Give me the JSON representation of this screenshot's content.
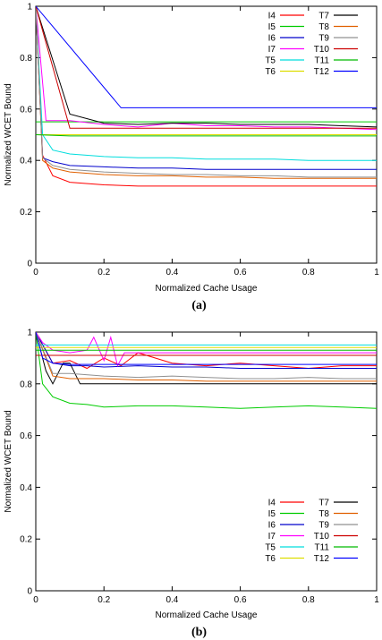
{
  "chart_data": [
    {
      "type": "line",
      "panel_label": "(a)",
      "xlabel": "Normalized Cache Usage",
      "ylabel": "Normalized WCET Bound",
      "xlim": [
        0,
        1
      ],
      "ylim": [
        0,
        1
      ],
      "xticks": [
        "0",
        "0.2",
        "0.4",
        "0.6",
        "0.8",
        "1"
      ],
      "yticks": [
        "0",
        "0.2",
        "0.4",
        "0.6",
        "0.8",
        "1"
      ],
      "grid": false,
      "legend_position": "top-right",
      "legend_columns": 2,
      "series": [
        {
          "name": "I4",
          "color": "#ff0000",
          "x": [
            0,
            0.02,
            0.05,
            0.1,
            0.2,
            0.3,
            0.4,
            0.5,
            0.6,
            0.7,
            0.8,
            0.9,
            1
          ],
          "y": [
            1,
            0.42,
            0.34,
            0.315,
            0.305,
            0.3,
            0.3,
            0.3,
            0.3,
            0.3,
            0.3,
            0.3,
            0.3
          ]
        },
        {
          "name": "I5",
          "color": "#00cc00",
          "x": [
            0,
            0.1,
            0.2,
            0.3,
            0.4,
            0.5,
            0.6,
            0.7,
            0.8,
            0.9,
            1
          ],
          "y": [
            0.55,
            0.55,
            0.55,
            0.55,
            0.55,
            0.55,
            0.55,
            0.55,
            0.55,
            0.55,
            0.55
          ]
        },
        {
          "name": "I6",
          "color": "#0000cc",
          "x": [
            0,
            0.02,
            0.05,
            0.1,
            0.2,
            0.3,
            0.4,
            0.5,
            0.6,
            0.7,
            0.8,
            0.9,
            1
          ],
          "y": [
            1,
            0.41,
            0.395,
            0.38,
            0.375,
            0.37,
            0.37,
            0.365,
            0.365,
            0.365,
            0.365,
            0.365,
            0.365
          ]
        },
        {
          "name": "I7",
          "color": "#ff00ff",
          "x": [
            0,
            0.03,
            0.1,
            0.2,
            0.3,
            0.4,
            0.5,
            0.6,
            0.7,
            0.8,
            0.9,
            1
          ],
          "y": [
            1,
            0.555,
            0.555,
            0.54,
            0.53,
            0.545,
            0.535,
            0.535,
            0.53,
            0.53,
            0.525,
            0.52
          ]
        },
        {
          "name": "T5",
          "color": "#00dddd",
          "x": [
            0,
            0.02,
            0.05,
            0.1,
            0.2,
            0.3,
            0.4,
            0.5,
            0.6,
            0.7,
            0.8,
            0.9,
            1
          ],
          "y": [
            1,
            0.5,
            0.44,
            0.425,
            0.415,
            0.41,
            0.41,
            0.405,
            0.405,
            0.405,
            0.4,
            0.4,
            0.4
          ]
        },
        {
          "name": "T6",
          "color": "#dddd00",
          "x": [
            0,
            0.1,
            0.2,
            0.3,
            0.4,
            0.5,
            0.6,
            0.7,
            0.8,
            0.9,
            1
          ],
          "y": [
            0.5,
            0.5,
            0.5,
            0.5,
            0.5,
            0.5,
            0.5,
            0.5,
            0.5,
            0.5,
            0.5
          ]
        },
        {
          "name": "T7",
          "color": "#000000",
          "x": [
            0,
            0.1,
            0.2,
            0.3,
            0.4,
            0.5,
            0.6,
            0.7,
            0.8,
            0.9,
            1
          ],
          "y": [
            1,
            0.58,
            0.545,
            0.54,
            0.545,
            0.545,
            0.54,
            0.54,
            0.54,
            0.535,
            0.53
          ]
        },
        {
          "name": "T8",
          "color": "#e06000",
          "x": [
            0,
            0.02,
            0.05,
            0.1,
            0.2,
            0.3,
            0.4,
            0.5,
            0.6,
            0.7,
            0.8,
            0.9,
            1
          ],
          "y": [
            1,
            0.4,
            0.37,
            0.355,
            0.345,
            0.34,
            0.34,
            0.335,
            0.335,
            0.33,
            0.33,
            0.33,
            0.33
          ]
        },
        {
          "name": "T9",
          "color": "#909090",
          "x": [
            0,
            0.02,
            0.05,
            0.1,
            0.2,
            0.3,
            0.4,
            0.5,
            0.6,
            0.7,
            0.8,
            0.9,
            1
          ],
          "y": [
            1,
            0.41,
            0.38,
            0.365,
            0.355,
            0.35,
            0.345,
            0.345,
            0.34,
            0.34,
            0.335,
            0.335,
            0.335
          ]
        },
        {
          "name": "T10",
          "color": "#cc0000",
          "x": [
            0,
            0.1,
            0.2,
            0.3,
            0.4,
            0.5,
            0.6,
            0.7,
            0.8,
            0.9,
            1
          ],
          "y": [
            1,
            0.525,
            0.525,
            0.525,
            0.525,
            0.525,
            0.525,
            0.525,
            0.525,
            0.525,
            0.525
          ]
        },
        {
          "name": "T11",
          "color": "#00bb00",
          "x": [
            0,
            0.1,
            0.2,
            0.3,
            0.4,
            0.5,
            0.6,
            0.7,
            0.8,
            0.9,
            1
          ],
          "y": [
            0.5,
            0.495,
            0.495,
            0.495,
            0.495,
            0.495,
            0.495,
            0.495,
            0.495,
            0.495,
            0.495
          ]
        },
        {
          "name": "T12",
          "color": "#0000ff",
          "x": [
            0,
            0.25,
            0.4,
            0.6,
            0.8,
            1
          ],
          "y": [
            1,
            0.605,
            0.605,
            0.605,
            0.605,
            0.605
          ]
        }
      ]
    },
    {
      "type": "line",
      "panel_label": "(b)",
      "xlabel": "Normalized Cache Usage",
      "ylabel": "Normalized WCET Bound",
      "xlim": [
        0,
        1
      ],
      "ylim": [
        0,
        1
      ],
      "xticks": [
        "0",
        "0.2",
        "0.4",
        "0.6",
        "0.8",
        "1"
      ],
      "yticks": [
        "0",
        "0.2",
        "0.4",
        "0.6",
        "0.8",
        "1"
      ],
      "grid": false,
      "legend_position": "bottom-right",
      "legend_columns": 2,
      "series": [
        {
          "name": "I4",
          "color": "#ff0000",
          "x": [
            0,
            0.02,
            0.05,
            0.1,
            0.15,
            0.2,
            0.25,
            0.3,
            0.4,
            0.5,
            0.6,
            0.7,
            0.8,
            0.9,
            1
          ],
          "y": [
            1,
            0.95,
            0.88,
            0.89,
            0.86,
            0.9,
            0.87,
            0.92,
            0.88,
            0.87,
            0.88,
            0.87,
            0.86,
            0.87,
            0.87
          ]
        },
        {
          "name": "I5",
          "color": "#00cc00",
          "x": [
            0,
            0.02,
            0.05,
            0.1,
            0.15,
            0.2,
            0.3,
            0.4,
            0.5,
            0.6,
            0.7,
            0.8,
            0.9,
            1
          ],
          "y": [
            1,
            0.8,
            0.75,
            0.725,
            0.72,
            0.71,
            0.715,
            0.715,
            0.71,
            0.705,
            0.71,
            0.715,
            0.71,
            0.705
          ]
        },
        {
          "name": "I6",
          "color": "#0000cc",
          "x": [
            0,
            0.05,
            0.1,
            0.15,
            0.2,
            0.3,
            0.4,
            0.5,
            0.6,
            0.7,
            0.8,
            0.9,
            1
          ],
          "y": [
            1,
            0.88,
            0.87,
            0.87,
            0.865,
            0.87,
            0.865,
            0.865,
            0.86,
            0.86,
            0.86,
            0.86,
            0.86
          ]
        },
        {
          "name": "I7",
          "color": "#ff00ff",
          "x": [
            0,
            0.02,
            0.05,
            0.1,
            0.15,
            0.17,
            0.2,
            0.22,
            0.24,
            0.26,
            0.3,
            0.4,
            1
          ],
          "y": [
            1,
            0.96,
            0.93,
            0.92,
            0.93,
            0.98,
            0.89,
            0.98,
            0.87,
            0.92,
            0.92,
            0.92,
            0.92
          ]
        },
        {
          "name": "T5",
          "color": "#00dddd",
          "x": [
            0,
            0.1,
            0.2,
            0.4,
            0.6,
            0.8,
            1
          ],
          "y": [
            0.95,
            0.95,
            0.95,
            0.95,
            0.95,
            0.95,
            0.95
          ]
        },
        {
          "name": "T6",
          "color": "#dddd00",
          "x": [
            0,
            0.1,
            0.2,
            0.4,
            0.6,
            0.8,
            1
          ],
          "y": [
            0.94,
            0.94,
            0.94,
            0.94,
            0.94,
            0.94,
            0.94
          ]
        },
        {
          "name": "T7",
          "color": "#000000",
          "x": [
            0,
            0.03,
            0.05,
            0.08,
            0.1,
            0.13,
            0.2,
            0.4,
            0.6,
            0.8,
            1
          ],
          "y": [
            1,
            0.85,
            0.8,
            0.88,
            0.88,
            0.8,
            0.8,
            0.8,
            0.8,
            0.8,
            0.8
          ]
        },
        {
          "name": "T8",
          "color": "#e06000",
          "x": [
            0,
            0.05,
            0.1,
            0.2,
            0.3,
            0.4,
            0.5,
            0.6,
            0.7,
            0.8,
            0.9,
            1
          ],
          "y": [
            1,
            0.83,
            0.82,
            0.82,
            0.815,
            0.815,
            0.81,
            0.81,
            0.81,
            0.81,
            0.81,
            0.81
          ]
        },
        {
          "name": "T9",
          "color": "#909090",
          "x": [
            0,
            0.05,
            0.1,
            0.2,
            0.3,
            0.4,
            0.5,
            0.6,
            0.7,
            0.8,
            0.9,
            1
          ],
          "y": [
            1,
            0.84,
            0.84,
            0.83,
            0.825,
            0.83,
            0.825,
            0.82,
            0.82,
            0.825,
            0.82,
            0.82
          ]
        },
        {
          "name": "T10",
          "color": "#cc0000",
          "x": [
            0,
            0.1,
            0.2,
            0.4,
            0.6,
            0.8,
            1
          ],
          "y": [
            0.91,
            0.91,
            0.91,
            0.91,
            0.91,
            0.91,
            0.91
          ]
        },
        {
          "name": "T11",
          "color": "#00bb00",
          "x": [
            0,
            0.1,
            0.2,
            0.4,
            0.6,
            0.8,
            1
          ],
          "y": [
            0.93,
            0.93,
            0.93,
            0.93,
            0.93,
            0.93,
            0.93
          ]
        },
        {
          "name": "T12",
          "color": "#0000ff",
          "x": [
            0,
            0.02,
            0.05,
            0.1,
            0.2,
            0.4,
            0.6,
            0.8,
            1
          ],
          "y": [
            1,
            0.9,
            0.88,
            0.875,
            0.875,
            0.875,
            0.875,
            0.875,
            0.875
          ]
        }
      ]
    }
  ]
}
